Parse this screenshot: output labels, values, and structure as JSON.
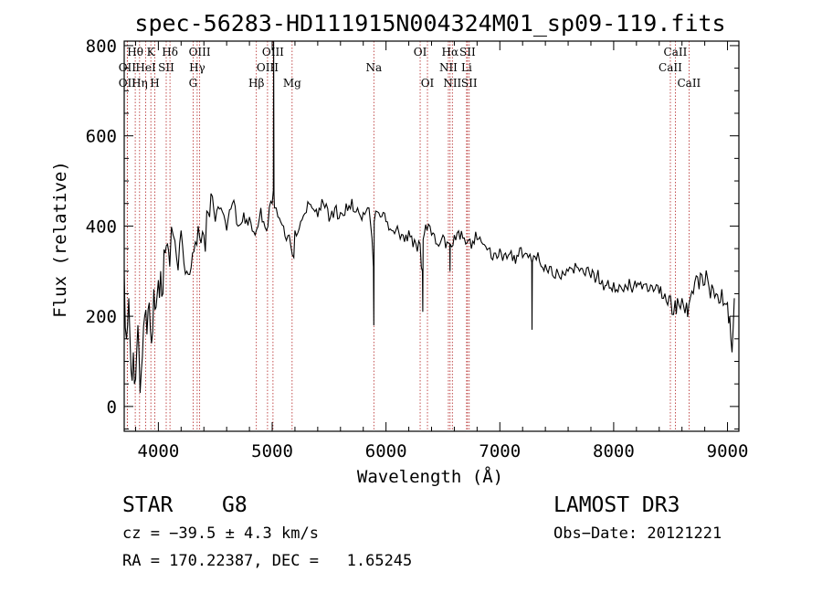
{
  "chart_data": {
    "type": "line",
    "title": "spec-56283-HD111915N004324M01_sp09-119.fits",
    "xlabel": "Wavelength (Å)",
    "ylabel": "Flux (relative)",
    "xlim": [
      3700,
      9100
    ],
    "ylim": [
      -55,
      810
    ],
    "xticks": [
      4000,
      5000,
      6000,
      7000,
      8000,
      9000
    ],
    "yticks": [
      0,
      200,
      400,
      600,
      800
    ],
    "spectrum": {
      "x": [
        3700,
        3720,
        3740,
        3760,
        3780,
        3800,
        3820,
        3840,
        3860,
        3880,
        3900,
        3920,
        3940,
        3960,
        3980,
        4000,
        4020,
        4040,
        4060,
        4080,
        4100,
        4130,
        4160,
        4200,
        4250,
        4300,
        4350,
        4400,
        4450,
        4500,
        4550,
        4600,
        4650,
        4700,
        4750,
        4800,
        4850,
        4900,
        4950,
        5000,
        5010,
        5013,
        5016,
        5020,
        5050,
        5100,
        5150,
        5190,
        5200,
        5250,
        5300,
        5350,
        5400,
        5450,
        5500,
        5550,
        5600,
        5650,
        5700,
        5750,
        5800,
        5850,
        5890,
        5893,
        5896,
        5950,
        6000,
        6050,
        6100,
        6150,
        6200,
        6250,
        6300,
        6320,
        6323,
        6326,
        6360,
        6400,
        6450,
        6500,
        6560,
        6562,
        6564,
        6600,
        6650,
        6700,
        6750,
        6800,
        6850,
        6900,
        6950,
        7000,
        7050,
        7100,
        7150,
        7200,
        7250,
        7280,
        7283,
        7286,
        7320,
        7350,
        7400,
        7450,
        7500,
        7550,
        7600,
        7650,
        7700,
        7750,
        7800,
        7850,
        7900,
        7950,
        8000,
        8050,
        8100,
        8150,
        8200,
        8250,
        8300,
        8350,
        8400,
        8450,
        8500,
        8540,
        8560,
        8600,
        8640,
        8660,
        8700,
        8750,
        8800,
        8850,
        8900,
        8950,
        9000,
        9020,
        9040,
        9060
      ],
      "y": [
        300,
        150,
        240,
        80,
        120,
        60,
        180,
        30,
        110,
        200,
        160,
        230,
        140,
        260,
        220,
        280,
        300,
        250,
        340,
        360,
        310,
        380,
        330,
        390,
        300,
        340,
        400,
        380,
        420,
        410,
        440,
        390,
        450,
        400,
        430,
        420,
        380,
        440,
        390,
        450,
        480,
        810,
        470,
        440,
        420,
        400,
        380,
        330,
        390,
        410,
        430,
        440,
        420,
        450,
        410,
        440,
        430,
        450,
        460,
        440,
        430,
        440,
        310,
        180,
        410,
        420,
        410,
        390,
        400,
        380,
        390,
        370,
        360,
        300,
        210,
        370,
        390,
        380,
        360,
        380,
        360,
        300,
        360,
        380,
        370,
        360,
        350,
        370,
        360,
        350,
        340,
        350,
        340,
        345,
        335,
        330,
        330,
        320,
        170,
        320,
        325,
        320,
        315,
        310,
        305,
        300,
        300,
        295,
        300,
        290,
        285,
        285,
        280,
        280,
        275,
        270,
        270,
        265,
        265,
        260,
        255,
        255,
        250,
        250,
        245,
        235,
        240,
        240,
        230,
        225,
        250,
        260,
        270,
        240,
        250,
        260,
        230,
        200,
        120,
        240
      ]
    },
    "lines": [
      {
        "name": "Hθ",
        "wl": 3797,
        "row": 0
      },
      {
        "name": "OII",
        "wl": 3727,
        "row": 1
      },
      {
        "name": "OII",
        "wl": 3727,
        "row": 2
      },
      {
        "name": "K",
        "wl": 3934,
        "row": 0
      },
      {
        "name": "HeI",
        "wl": 3889,
        "row": 1
      },
      {
        "name": "Hη",
        "wl": 3835,
        "row": 2
      },
      {
        "name": "Hδ",
        "wl": 4102,
        "row": 0
      },
      {
        "name": "SII",
        "wl": 4069,
        "row": 1
      },
      {
        "name": "H",
        "wl": 3969,
        "row": 2
      },
      {
        "name": "OIII",
        "wl": 4363,
        "row": 0
      },
      {
        "name": "Hγ",
        "wl": 4341,
        "row": 1
      },
      {
        "name": "G",
        "wl": 4305,
        "row": 2
      },
      {
        "name": "Hβ",
        "wl": 4861,
        "row": 2
      },
      {
        "name": "OIII",
        "wl": 5007,
        "row": 0
      },
      {
        "name": "OIII",
        "wl": 4959,
        "row": 1
      },
      {
        "name": "Mg",
        "wl": 5175,
        "row": 2
      },
      {
        "name": "Na",
        "wl": 5893,
        "row": 1
      },
      {
        "name": "OI",
        "wl": 6300,
        "row": 0
      },
      {
        "name": "OI",
        "wl": 6364,
        "row": 2
      },
      {
        "name": "Hα",
        "wl": 6563,
        "row": 0
      },
      {
        "name": "SII",
        "wl": 6716,
        "row": 0
      },
      {
        "name": "NII",
        "wl": 6548,
        "row": 1
      },
      {
        "name": "Li",
        "wl": 6708,
        "row": 1
      },
      {
        "name": "NII",
        "wl": 6583,
        "row": 2
      },
      {
        "name": "SII",
        "wl": 6731,
        "row": 2
      },
      {
        "name": "CaII",
        "wl": 8542,
        "row": 0
      },
      {
        "name": "CaII",
        "wl": 8498,
        "row": 1
      },
      {
        "name": "CaII",
        "wl": 8662,
        "row": 2
      }
    ],
    "colors": {
      "spectrum": "#000000",
      "lines": "#b22222"
    }
  },
  "info": {
    "object_class": "STAR",
    "subclass": "G8",
    "survey": "LAMOST DR3",
    "cz": "cz = −39.5 ± 4.3 km/s",
    "obs_date": "Obs−Date: 20121221",
    "coords": "RA = 170.22387, DEC =   1.65245"
  }
}
